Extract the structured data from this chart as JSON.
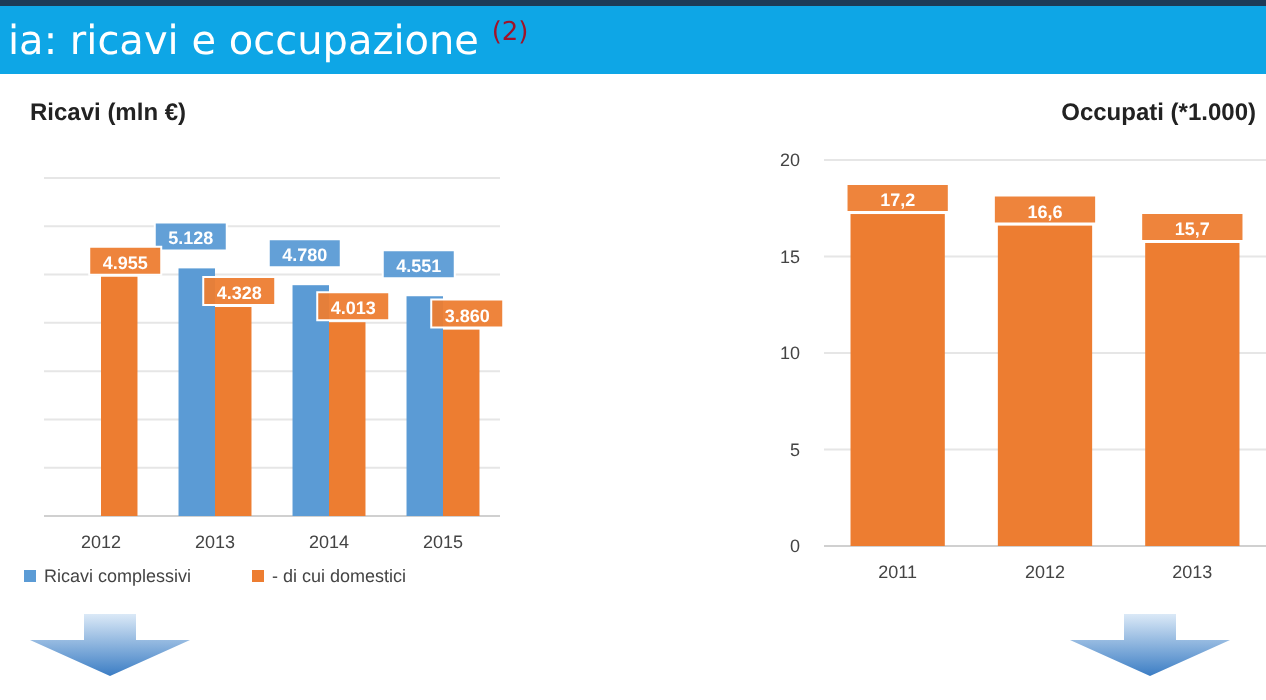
{
  "chart_data": [
    {
      "type": "bar",
      "title": "Ricavi (mln €)",
      "annotations": [
        "ia: ricavi e occupazione $^{(2)}$"
      ],
      "categories": [
        "2012",
        "2013",
        "2014",
        "2015"
      ],
      "series": [
        {
          "name": "Ricavi complessivi",
          "color": "#5b9bd5",
          "values": [
            null,
            5128,
            4780,
            4551
          ],
          "value_labels": [
            null,
            "5.128",
            "4.780",
            "4.551"
          ]
        },
        {
          "name": "- di cui domestici",
          "color": "#ed7d31",
          "values": [
            4955,
            4328,
            4013,
            3860
          ],
          "value_labels": [
            "4.955",
            "4.328",
            "4.013",
            "3.860"
          ]
        }
      ],
      "ylim": [
        0,
        7000
      ],
      "yticks": [
        {
          "value": 0,
          "label": null
        },
        {
          "value": 1000,
          "label": null
        },
        {
          "value": 2000,
          "label": null
        },
        {
          "value": 3000,
          "label": null
        },
        {
          "value": 4000,
          "label": null
        },
        {
          "value": 5000,
          "label": null
        },
        {
          "value": 6000,
          "label": null
        },
        {
          "value": 7000,
          "label": null
        }
      ],
      "grid": "y",
      "tick_labels": "x",
      "legend": "bottom"
    },
    {
      "type": "bar",
      "title": "Occupati (*1.000)",
      "categories": [
        "2011",
        "2012",
        "2013"
      ],
      "series": [
        {
          "color": "#ed7d31",
          "values": [
            17.2,
            16.6,
            15.7
          ],
          "value_labels": [
            "17,2",
            "16,6",
            "15,7"
          ]
        }
      ],
      "ylim": [
        0,
        20
      ],
      "yticks": [
        0,
        5,
        10,
        15,
        20
      ],
      "grid": "y"
    }
  ]
}
